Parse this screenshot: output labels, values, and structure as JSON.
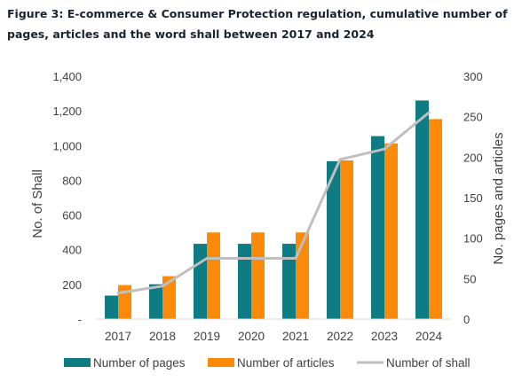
{
  "title": "Figure 3: E-commerce & Consumer Protection regulation, cumulative number of pages, articles and the word shall between 2017 and 2024",
  "chart_data": {
    "type": "bar",
    "title": "",
    "categories": [
      "2017",
      "2018",
      "2019",
      "2020",
      "2021",
      "2022",
      "2023",
      "2024"
    ],
    "series": [
      {
        "name": "Number of pages",
        "type": "bar",
        "axis": "right",
        "color": "#0f7b83",
        "values": [
          29,
          43,
          93,
          93,
          93,
          195,
          226,
          270
        ]
      },
      {
        "name": "Number of articles",
        "type": "bar",
        "axis": "right",
        "color": "#fb8a0b",
        "values": [
          42,
          53,
          107,
          107,
          107,
          196,
          217,
          247
        ]
      },
      {
        "name": "Number of shall",
        "type": "line",
        "axis": "left",
        "color": "#bfbfbf",
        "values": [
          150,
          190,
          350,
          350,
          350,
          920,
          980,
          1190
        ]
      }
    ],
    "ylabel_left": "No. of Shall",
    "ylabel_right": "No. pages and articles",
    "ylim_left": [
      0,
      1400
    ],
    "yticks_left": [
      "-",
      "200",
      "400",
      "600",
      "800",
      "1,000",
      "1,200",
      "1,400"
    ],
    "ylim_right": [
      0,
      300
    ],
    "yticks_right": [
      "0",
      "50",
      "100",
      "150",
      "200",
      "250",
      "300"
    ],
    "grid": false,
    "legend_position": "bottom"
  }
}
